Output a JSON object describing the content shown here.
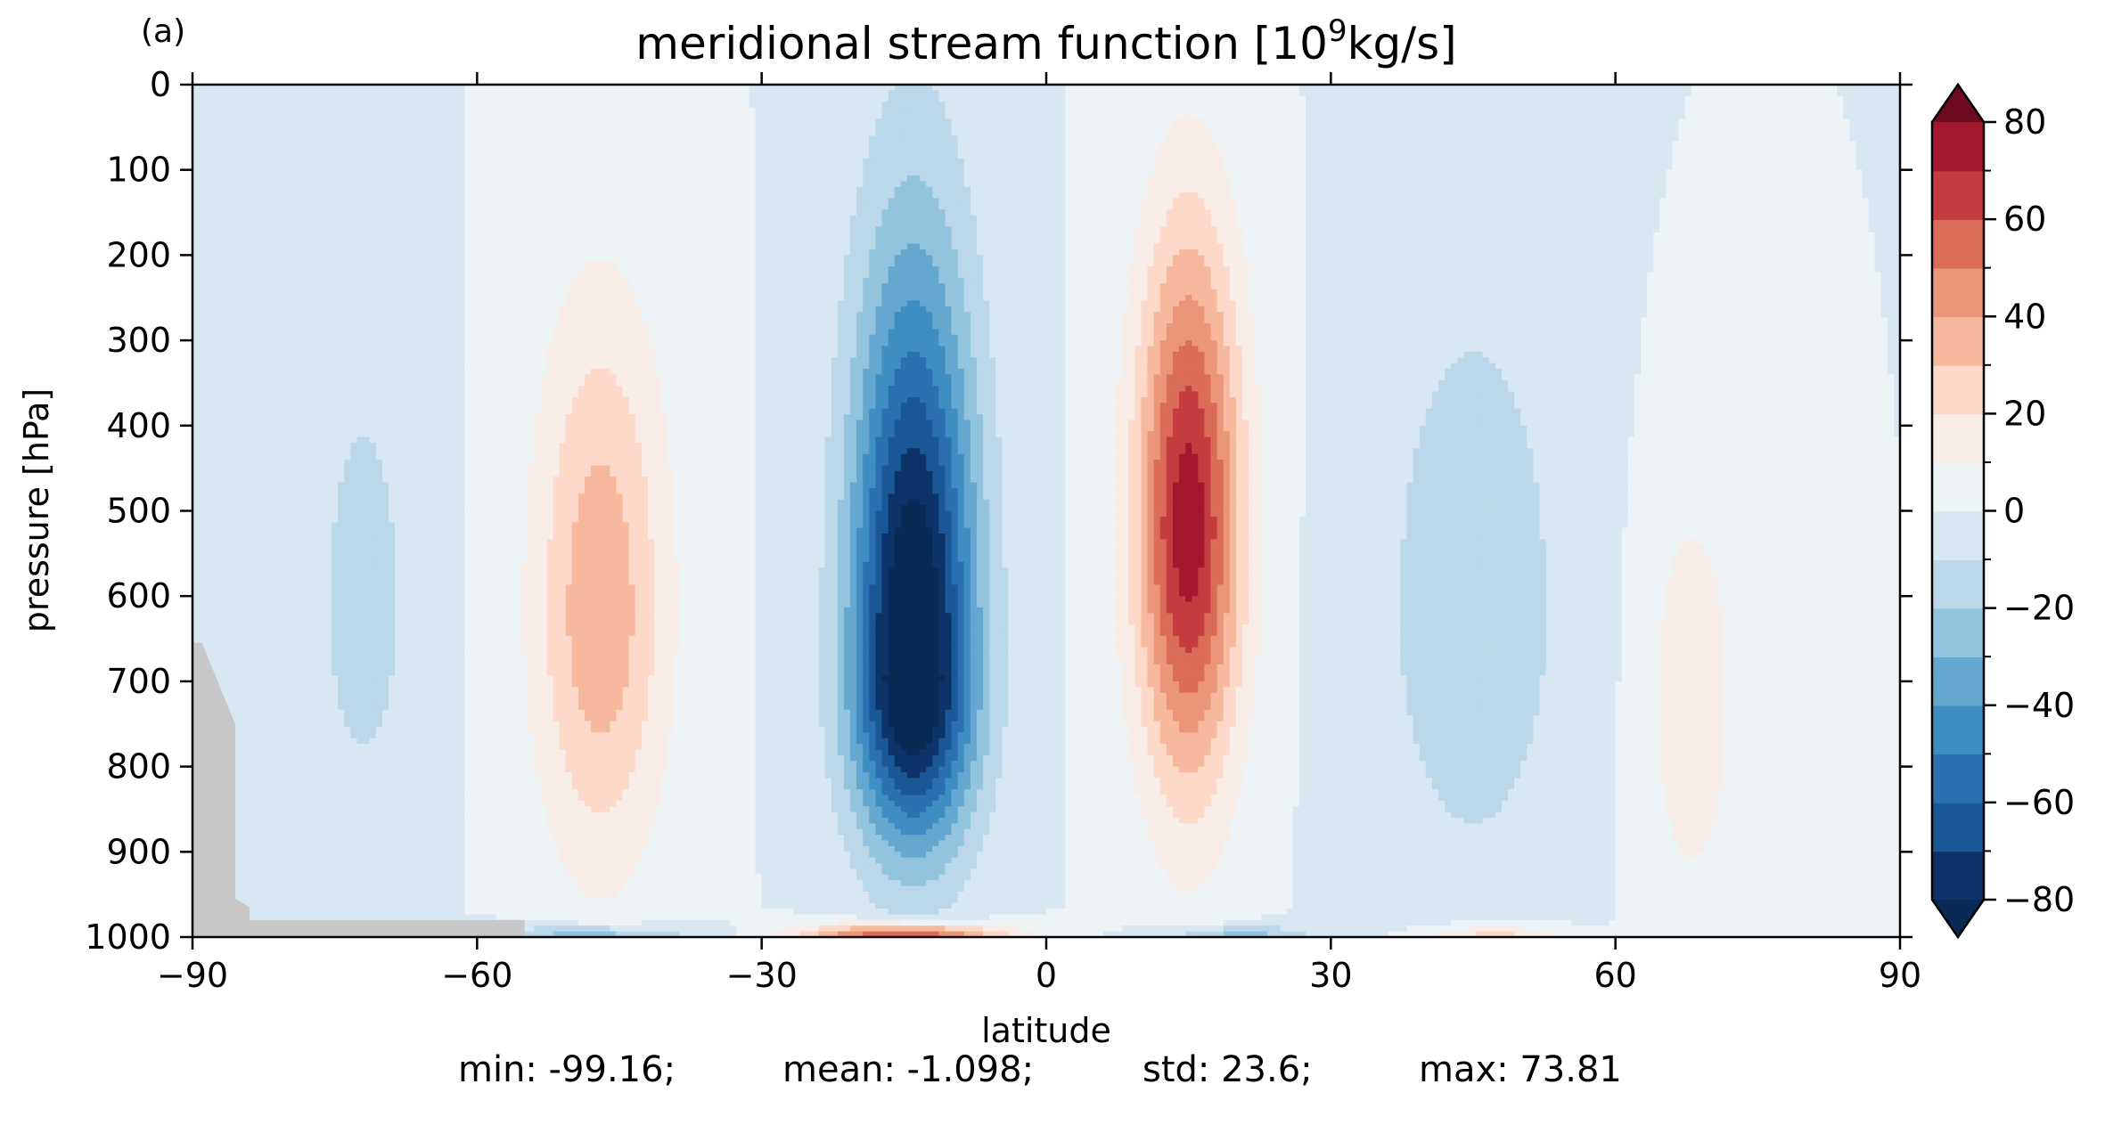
{
  "panel_label": "(a)",
  "chart_data": {
    "type": "contourf",
    "title": "meridional stream function [10",
    "title_sup": "9",
    "title_tail": "kg/s]",
    "xlabel": "latitude",
    "ylabel": "pressure [hPa]",
    "xlim": [
      -90,
      90
    ],
    "ylim": [
      1000,
      0
    ],
    "xticks": [
      -90,
      -60,
      -30,
      0,
      30,
      60,
      90
    ],
    "xtick_labels": [
      "−90",
      "−60",
      "−30",
      "0",
      "30",
      "60",
      "90"
    ],
    "yticks": [
      0,
      100,
      200,
      300,
      400,
      500,
      600,
      700,
      800,
      900,
      1000
    ],
    "ytick_labels": [
      "0",
      "100",
      "200",
      "300",
      "400",
      "500",
      "600",
      "700",
      "800",
      "900",
      "1000"
    ],
    "grid": false,
    "levels": [
      -80,
      -70,
      -60,
      -50,
      -40,
      -30,
      -20,
      -10,
      0,
      10,
      20,
      30,
      40,
      50,
      60,
      70,
      80
    ],
    "extend": "both",
    "colormap": "RdBu_r",
    "colors": [
      "#0c3468",
      "#1a5796",
      "#2b71b1",
      "#3f8ec3",
      "#64a8d0",
      "#92c4de",
      "#bad8e9",
      "#d8e8f2",
      "#eef3f6",
      "#f8ede7",
      "#fcd9c8",
      "#f7b99d",
      "#eb9679",
      "#db6c58",
      "#c53c3f",
      "#a5172d",
      "#8c0a24"
    ],
    "under_color": "#082a55",
    "over_color": "#6d0a1f",
    "background_value": 0,
    "colorbar": {
      "ticks": [
        80,
        60,
        40,
        20,
        0,
        -20,
        -40,
        -60,
        -80
      ],
      "tick_labels": [
        "80",
        "60",
        "40",
        "20",
        "0",
        "−20",
        "−40",
        "−60",
        "−80"
      ]
    },
    "cells": [
      {
        "name": "nh-ferrel-cell",
        "lat": 45,
        "p": 620,
        "peak": -18,
        "w_lat": 10,
        "w_top": 400,
        "w_bot": 320
      },
      {
        "name": "nh-hadley-cell",
        "lat": 15,
        "p": 520,
        "peak": 76,
        "w_lat": 5.5,
        "w_top": 340,
        "w_bot": 300
      },
      {
        "name": "sh-hadley-cell",
        "lat": -14,
        "p": 700,
        "peak": -99,
        "w_lat": 6.5,
        "w_top": 470,
        "w_bot": 190
      },
      {
        "name": "sh-ferrel-cell",
        "lat": -47,
        "p": 620,
        "peak": 38,
        "w_lat": 7,
        "w_top": 360,
        "w_bot": 290
      },
      {
        "name": "sh-polar-cell",
        "lat": -72,
        "p": 620,
        "peak": -14,
        "w_lat": 6,
        "w_top": 360,
        "w_bot": 260
      },
      {
        "name": "nh-polar-cell",
        "lat": 68,
        "p": 720,
        "peak": 17,
        "w_lat": 5,
        "w_top": 260,
        "w_bot": 260
      },
      {
        "name": "surface-positive-band",
        "lat": -15,
        "p": 1000,
        "peak": 70,
        "w_lat": 10,
        "w_top": 15,
        "w_bot": 15
      },
      {
        "name": "surface-negative-band",
        "lat": -48,
        "p": 1000,
        "peak": -30,
        "w_lat": 10,
        "w_top": 14,
        "w_bot": 14
      },
      {
        "name": "surface-negative-band-nh",
        "lat": 20,
        "p": 1000,
        "peak": -26,
        "w_lat": 8,
        "w_top": 13,
        "w_bot": 13
      },
      {
        "name": "surface-positive-band-nh",
        "lat": 47,
        "p": 1000,
        "peak": 28,
        "w_lat": 7,
        "w_top": 14,
        "w_bot": 14
      }
    ],
    "masked_region": {
      "color": "#c8c8c8",
      "outline": [
        [
          -90,
          1000
        ],
        [
          -90,
          655
        ],
        [
          -89,
          655
        ],
        [
          -85.5,
          750
        ],
        [
          -85.5,
          955
        ],
        [
          -84,
          965
        ],
        [
          -84,
          980
        ],
        [
          -55,
          980
        ],
        [
          -55,
          1000
        ]
      ]
    }
  },
  "stats": {
    "min": "min: -99.16;",
    "mean": "mean: -1.098;",
    "std": "std: 23.6;",
    "max": "max: 73.81"
  }
}
